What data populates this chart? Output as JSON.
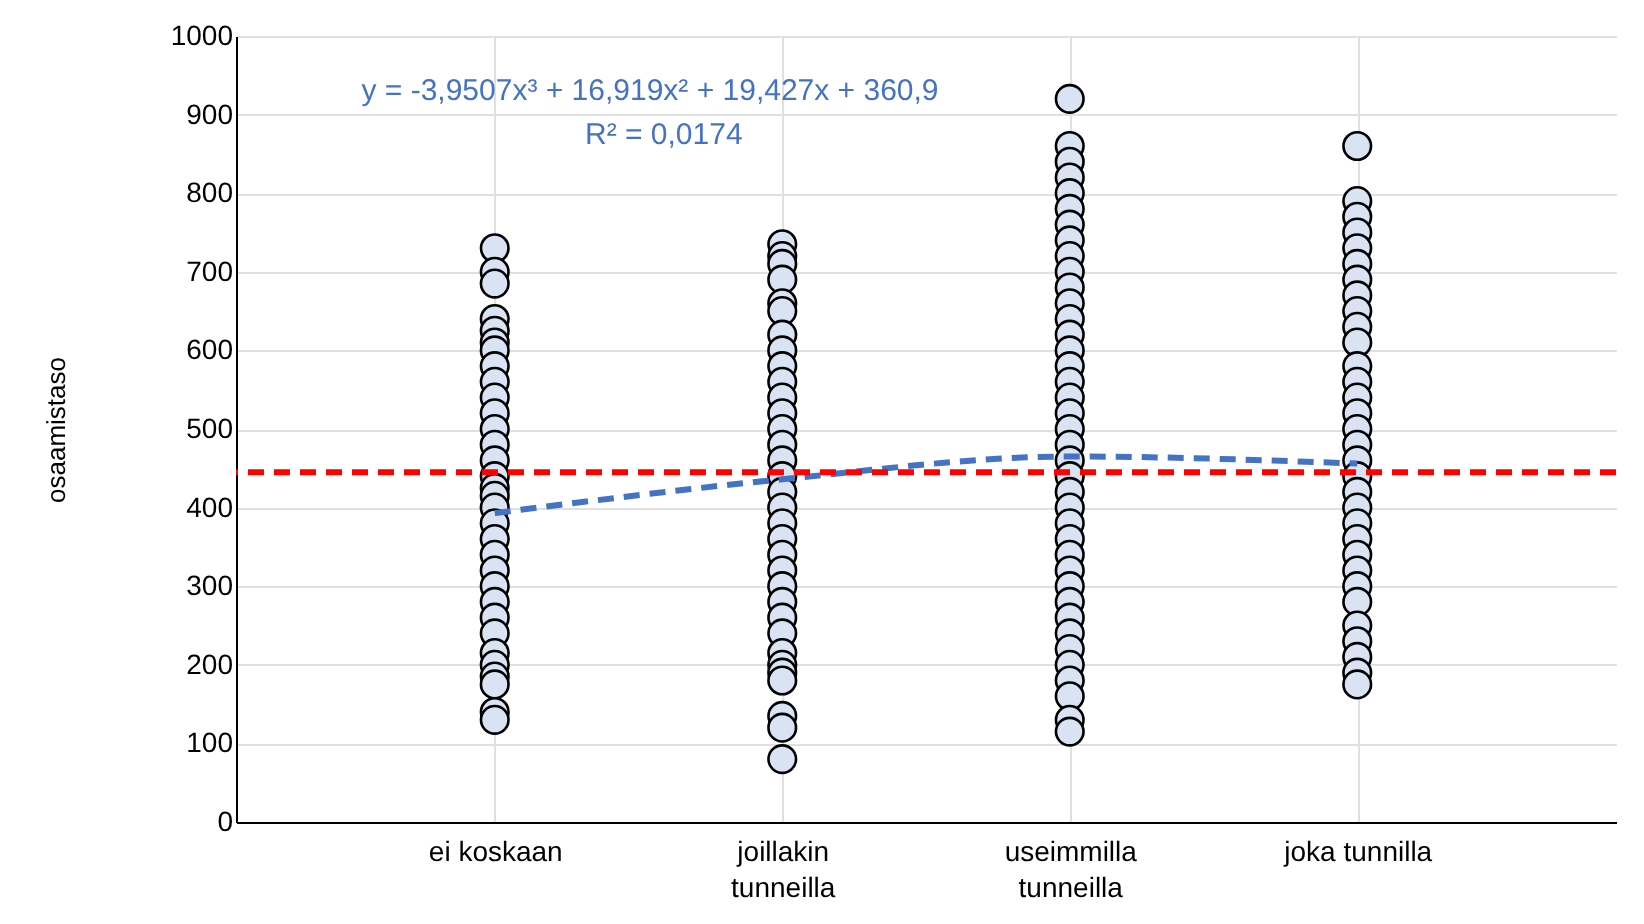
{
  "chart_data": {
    "type": "scatter",
    "ylabel": "osaamistaso",
    "annotations": [
      "y = -3,9507x³ + 16,919x² + 19,427x + 360,9",
      "R² = 0,0174"
    ],
    "categories": [
      "ei koskaan",
      "joillakin\ntunneilla",
      "useimmilla\ntunneilla",
      "joka tunnilla"
    ],
    "ylim": [
      0,
      1000
    ],
    "yticks": [
      0,
      100,
      200,
      300,
      400,
      500,
      600,
      700,
      800,
      900,
      1000
    ],
    "grid": true,
    "marker": "circle",
    "ref_lines": [
      {
        "axis": "y",
        "value": 445,
        "color": "#ff0000",
        "line_style": "dashed"
      }
    ],
    "series": [
      {
        "color": "#dae3f3",
        "x": [
          "ei koskaan",
          "ei koskaan",
          "ei koskaan",
          "ei koskaan",
          "ei koskaan",
          "ei koskaan",
          "ei koskaan",
          "ei koskaan",
          "ei koskaan",
          "ei koskaan",
          "ei koskaan",
          "ei koskaan",
          "ei koskaan",
          "ei koskaan",
          "ei koskaan",
          "ei koskaan",
          "ei koskaan",
          "ei koskaan",
          "ei koskaan",
          "ei koskaan",
          "ei koskaan",
          "ei koskaan",
          "ei koskaan",
          "ei koskaan",
          "ei koskaan",
          "ei koskaan",
          "ei koskaan",
          "ei koskaan",
          "ei koskaan",
          "ei koskaan",
          "ei koskaan",
          "ei koskaan",
          "joillakin\ntunneilla",
          "joillakin\ntunneilla",
          "joillakin\ntunneilla",
          "joillakin\ntunneilla",
          "joillakin\ntunneilla",
          "joillakin\ntunneilla",
          "joillakin\ntunneilla",
          "joillakin\ntunneilla",
          "joillakin\ntunneilla",
          "joillakin\ntunneilla",
          "joillakin\ntunneilla",
          "joillakin\ntunneilla",
          "joillakin\ntunneilla",
          "joillakin\ntunneilla",
          "joillakin\ntunneilla",
          "joillakin\ntunneilla",
          "joillakin\ntunneilla",
          "joillakin\ntunneilla",
          "joillakin\ntunneilla",
          "joillakin\ntunneilla",
          "joillakin\ntunneilla",
          "joillakin\ntunneilla",
          "joillakin\ntunneilla",
          "joillakin\ntunneilla",
          "joillakin\ntunneilla",
          "joillakin\ntunneilla",
          "joillakin\ntunneilla",
          "joillakin\ntunneilla",
          "joillakin\ntunneilla",
          "joillakin\ntunneilla",
          "joillakin\ntunneilla",
          "joillakin\ntunneilla",
          "joillakin\ntunneilla",
          "useimmilla\ntunneilla",
          "useimmilla\ntunneilla",
          "useimmilla\ntunneilla",
          "useimmilla\ntunneilla",
          "useimmilla\ntunneilla",
          "useimmilla\ntunneilla",
          "useimmilla\ntunneilla",
          "useimmilla\ntunneilla",
          "useimmilla\ntunneilla",
          "useimmilla\ntunneilla",
          "useimmilla\ntunneilla",
          "useimmilla\ntunneilla",
          "useimmilla\ntunneilla",
          "useimmilla\ntunneilla",
          "useimmilla\ntunneilla",
          "useimmilla\ntunneilla",
          "useimmilla\ntunneilla",
          "useimmilla\ntunneilla",
          "useimmilla\ntunneilla",
          "useimmilla\ntunneilla",
          "useimmilla\ntunneilla",
          "useimmilla\ntunneilla",
          "useimmilla\ntunneilla",
          "useimmilla\ntunneilla",
          "useimmilla\ntunneilla",
          "useimmilla\ntunneilla",
          "useimmilla\ntunneilla",
          "useimmilla\ntunneilla",
          "useimmilla\ntunneilla",
          "useimmilla\ntunneilla",
          "useimmilla\ntunneilla",
          "useimmilla\ntunneilla",
          "useimmilla\ntunneilla",
          "useimmilla\ntunneilla",
          "useimmilla\ntunneilla",
          "useimmilla\ntunneilla",
          "useimmilla\ntunneilla",
          "useimmilla\ntunneilla",
          "useimmilla\ntunneilla",
          "joka tunnilla",
          "joka tunnilla",
          "joka tunnilla",
          "joka tunnilla",
          "joka tunnilla",
          "joka tunnilla",
          "joka tunnilla",
          "joka tunnilla",
          "joka tunnilla",
          "joka tunnilla",
          "joka tunnilla",
          "joka tunnilla",
          "joka tunnilla",
          "joka tunnilla",
          "joka tunnilla",
          "joka tunnilla",
          "joka tunnilla",
          "joka tunnilla",
          "joka tunnilla",
          "joka tunnilla",
          "joka tunnilla",
          "joka tunnilla",
          "joka tunnilla",
          "joka tunnilla",
          "joka tunnilla",
          "joka tunnilla",
          "joka tunnilla",
          "joka tunnilla",
          "joka tunnilla",
          "joka tunnilla",
          "joka tunnilla",
          "joka tunnilla"
        ],
        "values": [
          730,
          700,
          685,
          640,
          625,
          610,
          600,
          580,
          560,
          540,
          520,
          500,
          480,
          460,
          440,
          425,
          415,
          400,
          380,
          360,
          340,
          320,
          300,
          280,
          260,
          240,
          215,
          200,
          185,
          175,
          140,
          130,
          735,
          720,
          710,
          690,
          660,
          650,
          620,
          600,
          580,
          560,
          540,
          520,
          500,
          480,
          460,
          440,
          420,
          400,
          380,
          360,
          340,
          320,
          300,
          280,
          260,
          240,
          215,
          200,
          190,
          180,
          135,
          120,
          80,
          920,
          860,
          840,
          820,
          800,
          780,
          760,
          740,
          720,
          700,
          680,
          660,
          640,
          620,
          600,
          580,
          560,
          540,
          520,
          500,
          480,
          460,
          440,
          420,
          400,
          380,
          360,
          340,
          320,
          300,
          280,
          260,
          240,
          220,
          200,
          180,
          160,
          130,
          115,
          860,
          790,
          770,
          750,
          730,
          710,
          690,
          670,
          650,
          630,
          610,
          580,
          560,
          540,
          520,
          500,
          480,
          460,
          440,
          420,
          400,
          380,
          360,
          340,
          320,
          300,
          280,
          250,
          230,
          210,
          190,
          175
        ]
      },
      {
        "type": "line",
        "color": "#4472c4",
        "line_style": "dashed",
        "marker": "none",
        "x": [
          "ei koskaan",
          "joillakin\ntunneilla",
          "useimmilla\ntunneilla",
          "joka tunnilla"
        ],
        "values": [
          393,
          436,
          465,
          456
        ]
      }
    ]
  }
}
